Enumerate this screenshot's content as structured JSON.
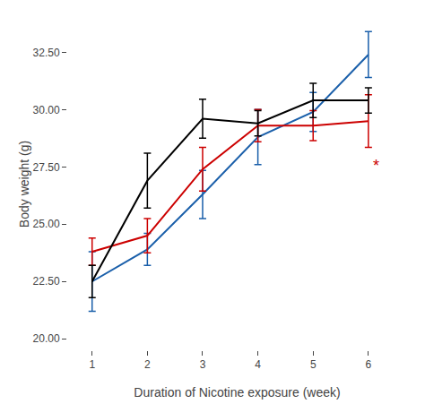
{
  "chart_data": {
    "type": "line",
    "x": [
      1,
      2,
      3,
      4,
      5,
      6
    ],
    "series": [
      {
        "color": "#000000",
        "values": [
          22.5,
          26.9,
          29.6,
          29.4,
          30.4,
          30.4
        ],
        "errors": [
          0.7,
          1.2,
          0.85,
          0.55,
          0.75,
          0.55
        ]
      },
      {
        "color": "#1a5faa",
        "values": [
          22.5,
          23.9,
          26.3,
          28.8,
          29.9,
          32.4
        ],
        "errors": [
          1.3,
          0.7,
          1.05,
          1.2,
          0.85,
          1.0
        ]
      },
      {
        "color": "#cc0000",
        "values": [
          23.8,
          24.5,
          27.4,
          29.3,
          29.3,
          29.5
        ],
        "errors": [
          0.6,
          0.75,
          0.95,
          0.7,
          0.65,
          1.15
        ]
      }
    ],
    "xlabel": "Duration of Nicotine exposure (week)",
    "ylabel": "Body weight (g)",
    "xlim": [
      0.55,
      6.7
    ],
    "ylim": [
      19.5,
      34.0
    ],
    "xticks": [
      1,
      2,
      3,
      4,
      5,
      6
    ],
    "yticks": [
      {
        "value": 20.0,
        "label": "20.00"
      },
      {
        "value": 22.5,
        "label": "22.50"
      },
      {
        "value": 25.0,
        "label": "25.00"
      },
      {
        "value": 27.5,
        "label": "27.50"
      },
      {
        "value": 30.0,
        "label": "30.00"
      },
      {
        "value": 32.5,
        "label": "32.50"
      }
    ],
    "annotations": [
      {
        "text": "*",
        "x": 6.05,
        "y": 27.55,
        "color": "#cc0000"
      }
    ],
    "grid": false
  }
}
